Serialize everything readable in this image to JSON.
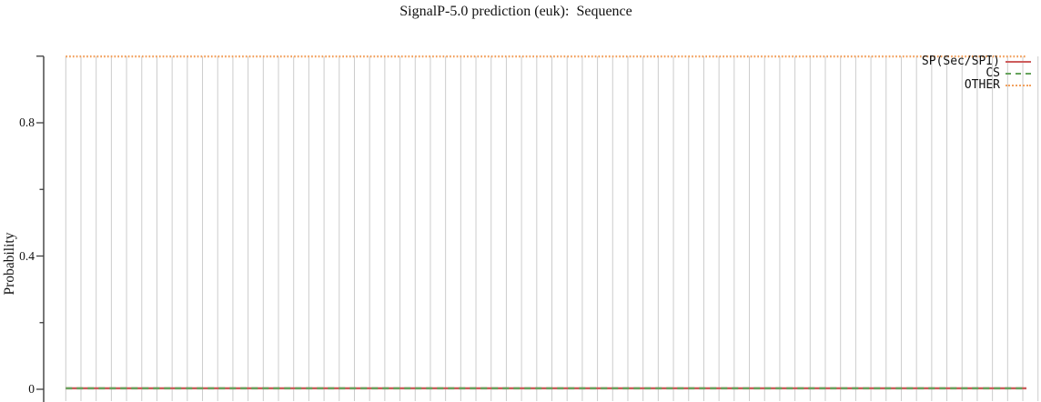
{
  "page": {
    "background": "#ffffff"
  },
  "chart_data": {
    "type": "line",
    "title": "SignalP-5.0 prediction (euk):  Sequence",
    "ylabel": "Probability",
    "ylim": [
      0,
      1.05
    ],
    "ytick_labels": [
      {
        "value": 0.8,
        "label": "0.8"
      },
      {
        "value": 0.4,
        "label": "0.4"
      },
      {
        "value": 0,
        "label": "0"
      }
    ],
    "yticks_long": [
      0,
      0.4,
      0.8,
      1.0
    ],
    "yticks_short": [
      0.2,
      0.6
    ],
    "x_positions": 65,
    "grid": "vertical-gridlines-only",
    "legend_position": "top-right-inside",
    "axis_color": "#3d3d3d",
    "gridline_color": "#cccccc",
    "series": [
      {
        "name": "SP(Sec/SPI)",
        "line_style": "solid",
        "color": "#cd5c5c",
        "values": [
          0.003,
          0.003,
          0.003,
          0.003,
          0.003,
          0.003,
          0.003,
          0.003,
          0.003,
          0.003,
          0.003,
          0.003,
          0.003,
          0.003,
          0.003,
          0.003,
          0.003,
          0.003,
          0.003,
          0.003,
          0.003,
          0.003,
          0.003,
          0.003,
          0.003,
          0.003,
          0.003,
          0.003,
          0.003,
          0.003,
          0.003,
          0.003,
          0.003,
          0.003,
          0.003,
          0.003,
          0.003,
          0.003,
          0.003,
          0.003,
          0.003,
          0.003,
          0.003,
          0.003,
          0.003,
          0.003,
          0.003,
          0.003,
          0.003,
          0.003,
          0.003,
          0.003,
          0.003,
          0.003,
          0.003,
          0.003,
          0.003,
          0.003,
          0.003,
          0.003,
          0.003,
          0.003,
          0.003,
          0.003
        ]
      },
      {
        "name": "CS",
        "line_style": "dashed",
        "color": "#66a35c",
        "values": [
          0.003,
          0.003,
          0.003,
          0.003,
          0.003,
          0.003,
          0.003,
          0.003,
          0.003,
          0.003,
          0.003,
          0.003,
          0.003,
          0.003,
          0.003,
          0.003,
          0.003,
          0.003,
          0.003,
          0.003,
          0.003,
          0.003,
          0.003,
          0.003,
          0.003,
          0.003,
          0.003,
          0.003,
          0.003,
          0.003,
          0.003,
          0.003,
          0.003,
          0.003,
          0.003,
          0.003,
          0.003,
          0.003,
          0.003,
          0.003,
          0.003,
          0.003,
          0.003,
          0.003,
          0.003,
          0.003,
          0.003,
          0.003,
          0.003,
          0.003,
          0.003,
          0.003,
          0.003,
          0.003,
          0.003,
          0.003,
          0.003,
          0.003,
          0.003,
          0.003,
          0.003,
          0.003,
          0.003,
          0.003
        ]
      },
      {
        "name": "OTHER",
        "line_style": "dotted",
        "color": "#f2a15e",
        "values": [
          0.999,
          0.999,
          0.999,
          0.999,
          0.999,
          0.999,
          0.999,
          0.999,
          0.999,
          0.999,
          0.999,
          0.999,
          0.999,
          0.999,
          0.999,
          0.999,
          0.999,
          0.999,
          0.999,
          0.999,
          0.999,
          0.999,
          0.999,
          0.999,
          0.999,
          0.999,
          0.999,
          0.999,
          0.999,
          0.999,
          0.999,
          0.999,
          0.999,
          0.999,
          0.999,
          0.999,
          0.999,
          0.999,
          0.999,
          0.999,
          0.999,
          0.999,
          0.999,
          0.999,
          0.999,
          0.999,
          0.999,
          0.999,
          0.999,
          0.999,
          0.999,
          0.999,
          0.999,
          0.999,
          0.999,
          0.999,
          0.999,
          0.999,
          0.999,
          0.999,
          0.999,
          0.999,
          0.999,
          0.999
        ]
      }
    ]
  }
}
